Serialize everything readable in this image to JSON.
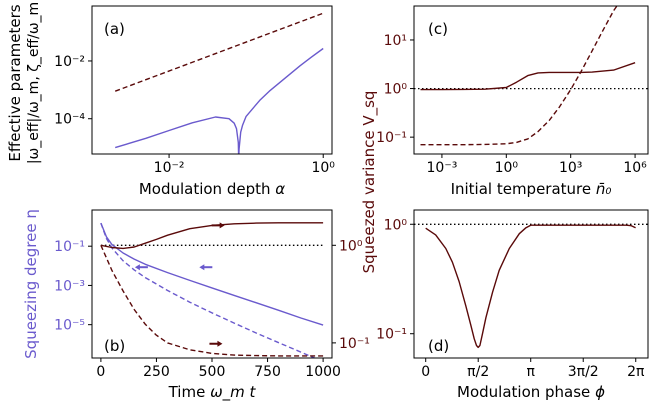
{
  "colors": {
    "dark": "#5a0a0a",
    "light": "#6a5acd",
    "axis": "#000000"
  },
  "chart_data": [
    {
      "panel": "a",
      "type": "line",
      "tag": "(a)",
      "xlabel_main": "Modulation depth ",
      "xlabel_sym": "α",
      "ylabel_line1": "Effective parameters",
      "ylabel_line2": "|ω_eff|/ω_m, ζ_eff/ω_m",
      "xscale": "log",
      "yscale": "log",
      "xlim": [
        0.001,
        1.3
      ],
      "ylim": [
        6e-06,
        0.8
      ],
      "xticks": [
        {
          "v": 0.01,
          "label": "10⁻²"
        },
        {
          "v": 1,
          "label": "10⁰"
        }
      ],
      "yticks": [
        {
          "v": 0.0001,
          "label": "10⁻⁴"
        },
        {
          "v": 0.01,
          "label": "10⁻²"
        }
      ],
      "series": [
        {
          "style": "dashed",
          "color": "dark",
          "x": [
            0.002,
            1
          ],
          "y": [
            0.0009,
            0.45
          ]
        },
        {
          "style": "solid",
          "color": "light",
          "x": [
            0.002,
            0.005,
            0.01,
            0.02,
            0.04,
            0.06,
            0.07,
            0.075,
            0.079,
            0.08,
            0.081,
            0.085,
            0.09,
            0.1,
            0.15,
            0.2,
            0.3,
            0.5,
            0.7,
            1
          ],
          "y": [
            1e-05,
            2.1e-05,
            3.9e-05,
            7.2e-05,
            0.000115,
            0.0001,
            7e-05,
            4.5e-05,
            1.5e-05,
            4e-06,
            9e-06,
            3.4e-05,
            6e-05,
            0.00012,
            0.00043,
            0.0009,
            0.0022,
            0.0068,
            0.0135,
            0.027
          ]
        }
      ]
    },
    {
      "panel": "b",
      "type": "line",
      "tag": "(b)",
      "xlabel_main": "Time ",
      "xlabel_sym": "ω_m t",
      "ylabel_left": "Squeezing degree η",
      "ylabel_right": "Squeezed variance V_sq",
      "xscale": "linear",
      "yscale_left": "log",
      "yscale_right": "log",
      "xlim": [
        -40,
        1040
      ],
      "ylim_left": [
        2e-07,
        7
      ],
      "ylim_right": [
        0.07,
        2.3
      ],
      "xticks": [
        0,
        250,
        500,
        750,
        1000
      ],
      "yticks_left": [
        {
          "v": 0.1,
          "label": "10⁻¹"
        },
        {
          "v": 0.001,
          "label": "10⁻³"
        },
        {
          "v": 1e-05,
          "label": "10⁻⁵"
        }
      ],
      "yticks_right": [
        {
          "v": 1,
          "label": "10⁰"
        },
        {
          "v": 0.1,
          "label": "10⁻¹"
        }
      ],
      "series": [
        {
          "axis": "right",
          "style": "dotted",
          "color": "axis",
          "x": [
            0,
            1000
          ],
          "y": [
            1,
            1
          ]
        },
        {
          "axis": "left",
          "style": "solid",
          "color": "light",
          "x": [
            0,
            25,
            50,
            100,
            150,
            200,
            300,
            400,
            500,
            600,
            700,
            800,
            900,
            1000
          ],
          "y": [
            1.5,
            0.3,
            0.12,
            0.045,
            0.022,
            0.012,
            0.0045,
            0.0018,
            0.00075,
            0.00031,
            0.00013,
            5.4e-05,
            2.2e-05,
            9.5e-06
          ]
        },
        {
          "axis": "left",
          "style": "dashed",
          "color": "light",
          "x": [
            0,
            25,
            50,
            100,
            150,
            200,
            300,
            400,
            500,
            600,
            700,
            800,
            900,
            1000
          ],
          "y": [
            1.5,
            0.25,
            0.08,
            0.018,
            0.0062,
            0.0025,
            0.00055,
            0.00014,
            4e-05,
            1.2e-05,
            3.7e-06,
            1.2e-06,
            4e-07,
            1.3e-07
          ]
        },
        {
          "axis": "right",
          "style": "solid",
          "color": "dark",
          "x": [
            0,
            50,
            100,
            150,
            200,
            250,
            300,
            400,
            500,
            600,
            700,
            800,
            900,
            1000
          ],
          "y": [
            1,
            0.95,
            0.93,
            0.96,
            1.05,
            1.15,
            1.27,
            1.48,
            1.6,
            1.66,
            1.69,
            1.7,
            1.7,
            1.7
          ]
        },
        {
          "axis": "right",
          "style": "dashed",
          "color": "dark",
          "x": [
            0,
            50,
            100,
            150,
            200,
            250,
            300,
            400,
            500,
            600,
            700,
            800,
            900,
            1000
          ],
          "y": [
            1,
            0.55,
            0.34,
            0.22,
            0.155,
            0.12,
            0.1,
            0.085,
            0.078,
            0.075,
            0.074,
            0.0735,
            0.0735,
            0.0735
          ]
        }
      ],
      "arrows": [
        {
          "x": 530,
          "axis": "right",
          "y": 1.6,
          "dir": "right",
          "color": "dark"
        },
        {
          "x": 180,
          "axis": "left",
          "y": 0.0085,
          "dir": "left",
          "color": "light"
        },
        {
          "x": 470,
          "axis": "left",
          "y": 0.0085,
          "dir": "left",
          "color": "light"
        },
        {
          "x": 520,
          "axis": "right",
          "y": 0.098,
          "dir": "right",
          "color": "dark"
        }
      ]
    },
    {
      "panel": "c",
      "type": "line",
      "tag": "(c)",
      "xlabel_main": "Initial temperature ",
      "xlabel_sym": "n̄₀",
      "ylabel": "Squeezed variance V_sq",
      "xscale": "log",
      "yscale": "log",
      "xlim": [
        5e-05,
        4000000
      ],
      "ylim": [
        0.045,
        50
      ],
      "xticks": [
        {
          "v": 0.001,
          "label": "10⁻³"
        },
        {
          "v": 1,
          "label": "10⁰"
        },
        {
          "v": 1000,
          "label": "10³"
        },
        {
          "v": 1000000,
          "label": "10⁶"
        }
      ],
      "yticks": [
        {
          "v": 0.1,
          "label": "10⁻¹"
        },
        {
          "v": 1,
          "label": "10⁰"
        },
        {
          "v": 10,
          "label": "10¹"
        }
      ],
      "series": [
        {
          "style": "dotted",
          "color": "axis",
          "x": [
            5e-05,
            4000000
          ],
          "y": [
            1,
            1
          ]
        },
        {
          "style": "solid",
          "color": "dark",
          "x": [
            0.0001,
            0.001,
            0.01,
            0.1,
            1,
            3,
            10,
            30,
            100,
            300,
            1000,
            3000,
            10000,
            100000,
            1000000
          ],
          "y": [
            0.95,
            0.95,
            0.96,
            0.97,
            1.05,
            1.35,
            1.85,
            2.1,
            2.15,
            2.15,
            2.15,
            2.15,
            2.18,
            2.4,
            3.4
          ]
        },
        {
          "style": "dashed",
          "color": "dark",
          "x": [
            0.0001,
            0.01,
            0.1,
            1,
            3,
            10,
            30,
            100,
            300,
            1000,
            3000,
            10000,
            30000,
            100000,
            300000
          ],
          "y": [
            0.07,
            0.07,
            0.071,
            0.073,
            0.078,
            0.092,
            0.13,
            0.22,
            0.42,
            0.95,
            2.2,
            6,
            15,
            40,
            80
          ]
        }
      ]
    },
    {
      "panel": "d",
      "type": "line",
      "tag": "(d)",
      "xlabel_main": "Modulation phase ",
      "xlabel_sym": "ϕ",
      "xscale": "linear",
      "yscale": "log",
      "xlim": [
        -0.35,
        6.65
      ],
      "ylim": [
        0.06,
        1.35
      ],
      "xticks": [
        {
          "v": 0,
          "label": "0"
        },
        {
          "v": 1.5708,
          "label": "π/2"
        },
        {
          "v": 3.1416,
          "label": "π"
        },
        {
          "v": 4.7124,
          "label": "3π/2"
        },
        {
          "v": 6.2832,
          "label": "2π"
        }
      ],
      "yticks": [
        {
          "v": 0.1,
          "label": "10⁻¹"
        },
        {
          "v": 1,
          "label": "10⁰"
        }
      ],
      "series": [
        {
          "style": "dotted",
          "color": "axis",
          "x": [
            -0.35,
            6.65
          ],
          "y": [
            1,
            1
          ]
        },
        {
          "style": "solid",
          "color": "dark",
          "x": [
            0,
            0.3,
            0.6,
            0.8,
            1.0,
            1.2,
            1.35,
            1.45,
            1.52,
            1.5708,
            1.62,
            1.7,
            1.8,
            2.0,
            2.2,
            2.5,
            2.8,
            3.0,
            3.1416,
            4.0,
            5.0,
            6.0,
            6.15,
            6.28
          ],
          "y": [
            0.92,
            0.8,
            0.6,
            0.45,
            0.3,
            0.18,
            0.12,
            0.09,
            0.078,
            0.075,
            0.078,
            0.1,
            0.14,
            0.24,
            0.38,
            0.6,
            0.82,
            0.93,
            0.98,
            0.98,
            0.98,
            0.98,
            0.97,
            0.93
          ]
        }
      ]
    }
  ]
}
